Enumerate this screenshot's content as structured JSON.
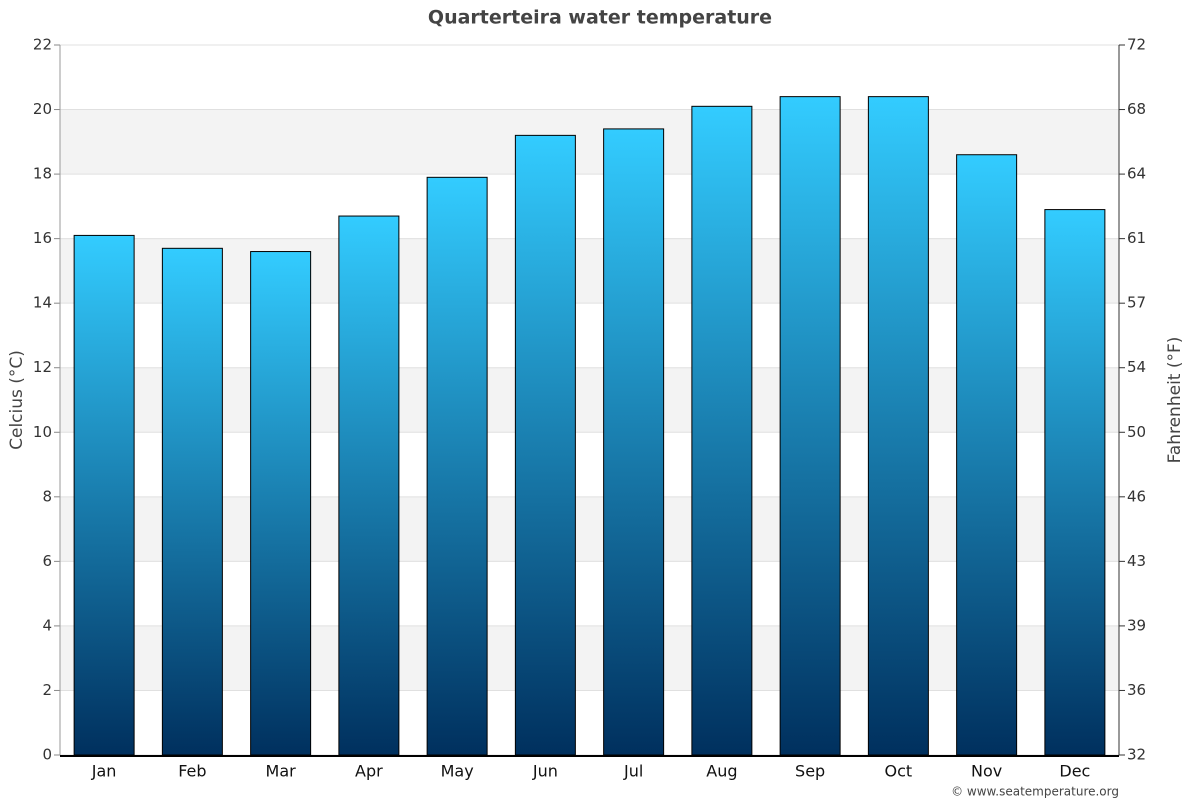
{
  "chart_data": {
    "type": "bar",
    "title": "Quarterteira water temperature",
    "y_label": "Celcius (°C)",
    "y2_label": "Fahrenheit (°F)",
    "credit": "© www.seatemperature.org",
    "categories": [
      "Jan",
      "Feb",
      "Mar",
      "Apr",
      "May",
      "Jun",
      "Jul",
      "Aug",
      "Sep",
      "Oct",
      "Nov",
      "Dec"
    ],
    "values": [
      16.1,
      15.7,
      15.6,
      16.7,
      17.9,
      19.2,
      19.4,
      20.1,
      20.4,
      20.4,
      18.6,
      16.9
    ],
    "gradient": [
      "#33ccff",
      "#00305e"
    ],
    "ylim": [
      0,
      22
    ],
    "yticks": [
      0,
      2,
      4,
      6,
      8,
      10,
      12,
      14,
      16,
      18,
      20,
      22
    ],
    "y2lim": [
      32,
      71.6
    ],
    "y2ticks": [
      32,
      {
        "value": 35.6,
        "label": "36"
      },
      {
        "value": 39.2,
        "label": "39"
      },
      {
        "value": 42.8,
        "label": "43"
      },
      {
        "value": 46.4,
        "label": "46"
      },
      50,
      {
        "value": 53.6,
        "label": "54"
      },
      {
        "value": 57.2,
        "label": "57"
      },
      {
        "value": 60.8,
        "label": "61"
      },
      {
        "value": 64.4,
        "label": "64"
      },
      {
        "value": 68,
        "label": "68"
      },
      {
        "value": 71.6,
        "label": "72"
      }
    ],
    "grid": true
  }
}
